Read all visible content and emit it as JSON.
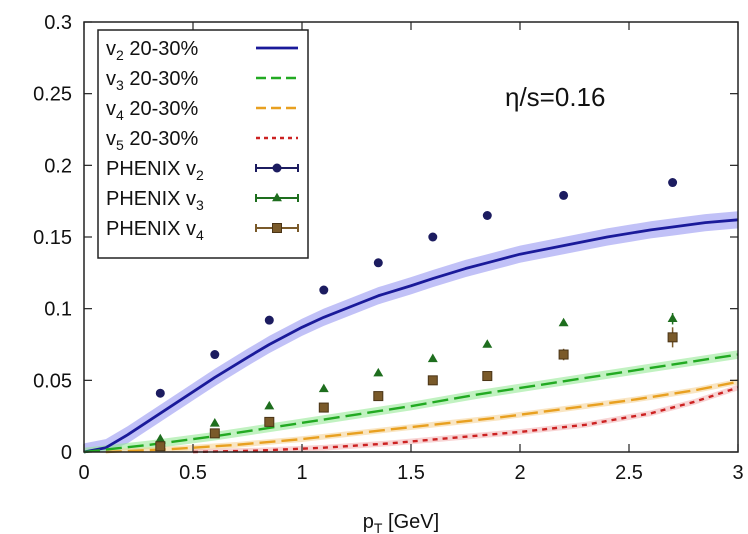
{
  "chart_data": {
    "type": "line",
    "xlabel": "p_T [GeV]",
    "ylabel": "",
    "xlim": [
      0,
      3
    ],
    "ylim": [
      0,
      0.3
    ],
    "xticks": [
      "0",
      "0.5",
      "1",
      "1.5",
      "2",
      "2.5",
      "3"
    ],
    "yticks": [
      "0",
      "0.05",
      "0.1",
      "0.15",
      "0.2",
      "0.25",
      "0.3"
    ],
    "annotation": "η/s=0.16",
    "legend_position": "top-left",
    "colors": {
      "v2": "#1a1a9a",
      "v3": "#22aa22",
      "v4": "#e8a020",
      "v5": "#cc2222",
      "ph_v2": "#1c1c60",
      "ph_v3": "#1e6e1e",
      "ph_v4": "#7a5a2a",
      "band_v2": "#8e8ef0",
      "band_v3": "#8ee88e",
      "band_v4": "#f4cf90",
      "band_v5": "#f2b0b0"
    },
    "series": [
      {
        "name": "v2 20-30%",
        "key": "v2",
        "style": "solid",
        "x": [
          0,
          0.1,
          0.2,
          0.35,
          0.5,
          0.6,
          0.75,
          0.85,
          1.0,
          1.1,
          1.25,
          1.35,
          1.5,
          1.6,
          1.75,
          1.85,
          2.0,
          2.2,
          2.4,
          2.6,
          2.7,
          2.85,
          3.0
        ],
        "y": [
          0,
          0.003,
          0.012,
          0.027,
          0.042,
          0.052,
          0.066,
          0.075,
          0.087,
          0.094,
          0.103,
          0.109,
          0.116,
          0.121,
          0.128,
          0.132,
          0.138,
          0.144,
          0.15,
          0.155,
          0.157,
          0.16,
          0.162
        ]
      },
      {
        "name": "v3 20-30%",
        "key": "v3",
        "style": "dashed",
        "x": [
          0,
          0.3,
          0.6,
          0.9,
          1.2,
          1.5,
          1.8,
          2.1,
          2.4,
          2.7,
          3.0
        ],
        "y": [
          0,
          0.005,
          0.011,
          0.018,
          0.025,
          0.032,
          0.04,
          0.047,
          0.054,
          0.061,
          0.068
        ]
      },
      {
        "name": "v4 20-30%",
        "key": "v4",
        "style": "dashed",
        "x": [
          0.1,
          0.4,
          0.7,
          1.0,
          1.3,
          1.6,
          1.9,
          2.2,
          2.5,
          2.8,
          3.0
        ],
        "y": [
          0,
          0.002,
          0.005,
          0.009,
          0.014,
          0.019,
          0.024,
          0.03,
          0.036,
          0.043,
          0.049
        ]
      },
      {
        "name": "v5 20-30%",
        "key": "v5",
        "style": "dotted",
        "x": [
          0.5,
          0.8,
          1.1,
          1.4,
          1.7,
          2.0,
          2.3,
          2.6,
          2.8,
          3.0
        ],
        "y": [
          0,
          0.001,
          0.003,
          0.006,
          0.01,
          0.014,
          0.019,
          0.027,
          0.035,
          0.045
        ]
      },
      {
        "name": "PHENIX v2",
        "key": "ph_v2",
        "marker": "circle",
        "x": [
          0.35,
          0.6,
          0.85,
          1.1,
          1.35,
          1.6,
          1.85,
          2.2,
          2.7
        ],
        "y": [
          0.041,
          0.068,
          0.092,
          0.113,
          0.132,
          0.15,
          0.165,
          0.179,
          0.188
        ],
        "err": [
          0.001,
          0.001,
          0.001,
          0.001,
          0.001,
          0.001,
          0.001,
          0.001,
          0.001
        ]
      },
      {
        "name": "PHENIX v3",
        "key": "ph_v3",
        "marker": "triangle",
        "x": [
          0.35,
          0.6,
          0.85,
          1.1,
          1.35,
          1.6,
          1.85,
          2.2,
          2.7
        ],
        "y": [
          0.009,
          0.02,
          0.032,
          0.044,
          0.055,
          0.065,
          0.075,
          0.09,
          0.093
        ],
        "err": [
          0.001,
          0.001,
          0.001,
          0.001,
          0.001,
          0.001,
          0.001,
          0.002,
          0.004
        ]
      },
      {
        "name": "PHENIX v4",
        "key": "ph_v4",
        "marker": "square",
        "x": [
          0.35,
          0.6,
          0.85,
          1.1,
          1.35,
          1.6,
          1.85,
          2.2,
          2.7
        ],
        "y": [
          0.004,
          0.013,
          0.021,
          0.031,
          0.039,
          0.05,
          0.053,
          0.068,
          0.08
        ],
        "err": [
          0.001,
          0.002,
          0.002,
          0.002,
          0.002,
          0.003,
          0.003,
          0.004,
          0.007
        ]
      }
    ]
  },
  "legend": [
    {
      "base": "v",
      "sub": "2",
      "rest": " 20-30%",
      "key": "v2",
      "kind": "line",
      "style": "solid"
    },
    {
      "base": "v",
      "sub": "3",
      "rest": " 20-30%",
      "key": "v3",
      "kind": "line",
      "style": "dashed"
    },
    {
      "base": "v",
      "sub": "4",
      "rest": " 20-30%",
      "key": "v4",
      "kind": "line",
      "style": "dashed"
    },
    {
      "base": "v",
      "sub": "5",
      "rest": " 20-30%",
      "key": "v5",
      "kind": "line",
      "style": "dotted"
    },
    {
      "base": "PHENIX v",
      "sub": "2",
      "rest": "",
      "key": "ph_v2",
      "kind": "marker",
      "marker": "circle"
    },
    {
      "base": "PHENIX v",
      "sub": "3",
      "rest": "",
      "key": "ph_v3",
      "kind": "marker",
      "marker": "triangle"
    },
    {
      "base": "PHENIX v",
      "sub": "4",
      "rest": "",
      "key": "ph_v4",
      "kind": "marker",
      "marker": "square"
    }
  ],
  "xlabel_parts": {
    "base": "p",
    "sub": "T",
    "rest": " [GeV]"
  }
}
